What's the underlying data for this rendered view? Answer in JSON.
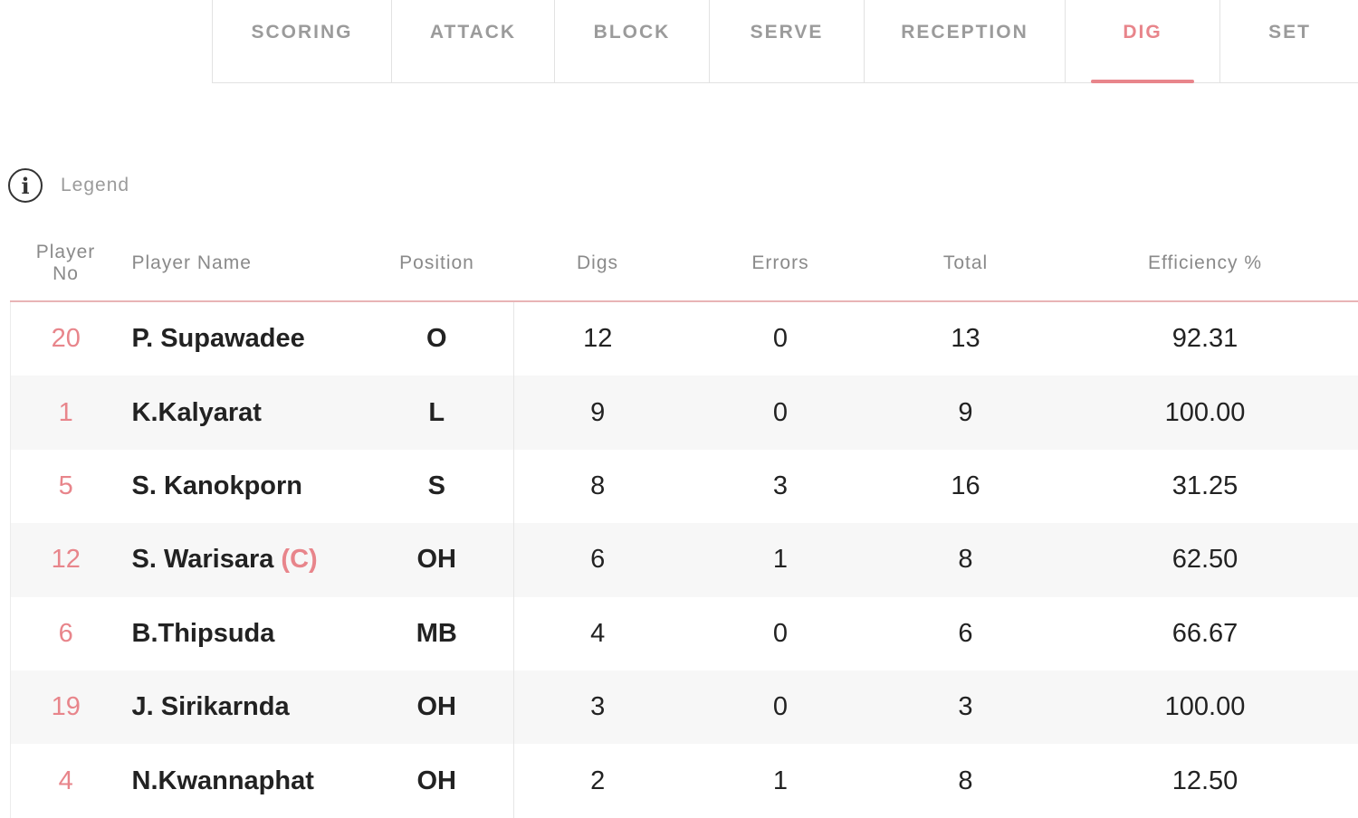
{
  "tabs": [
    {
      "label": "SCORING",
      "active": false
    },
    {
      "label": "ATTACK",
      "active": false
    },
    {
      "label": "BLOCK",
      "active": false
    },
    {
      "label": "SERVE",
      "active": false
    },
    {
      "label": "RECEPTION",
      "active": false
    },
    {
      "label": "DIG",
      "active": true
    },
    {
      "label": "SET",
      "active": false
    }
  ],
  "legend": {
    "icon": "info-icon",
    "label": "Legend"
  },
  "accent_color": "#e8858b",
  "table": {
    "headers": {
      "player_no_1": "Player",
      "player_no_2": "No",
      "player_name": "Player Name",
      "position": "Position",
      "digs": "Digs",
      "errors": "Errors",
      "total": "Total",
      "efficiency": "Efficiency %"
    },
    "rows": [
      {
        "no": "20",
        "name": "P. Supawadee",
        "captain": "",
        "position": "O",
        "digs": "12",
        "errors": "0",
        "total": "13",
        "efficiency": "92.31"
      },
      {
        "no": "1",
        "name": "K.Kalyarat",
        "captain": "",
        "position": "L",
        "digs": "9",
        "errors": "0",
        "total": "9",
        "efficiency": "100.00"
      },
      {
        "no": "5",
        "name": "S. Kanokporn",
        "captain": "",
        "position": "S",
        "digs": "8",
        "errors": "3",
        "total": "16",
        "efficiency": "31.25"
      },
      {
        "no": "12",
        "name": "S. Warisara",
        "captain": "(C)",
        "position": "OH",
        "digs": "6",
        "errors": "1",
        "total": "8",
        "efficiency": "62.50"
      },
      {
        "no": "6",
        "name": "B.Thipsuda",
        "captain": "",
        "position": "MB",
        "digs": "4",
        "errors": "0",
        "total": "6",
        "efficiency": "66.67"
      },
      {
        "no": "19",
        "name": "J. Sirikarnda",
        "captain": "",
        "position": "OH",
        "digs": "3",
        "errors": "0",
        "total": "3",
        "efficiency": "100.00"
      },
      {
        "no": "4",
        "name": "N.Kwannaphat",
        "captain": "",
        "position": "OH",
        "digs": "2",
        "errors": "1",
        "total": "8",
        "efficiency": "12.50"
      }
    ]
  }
}
